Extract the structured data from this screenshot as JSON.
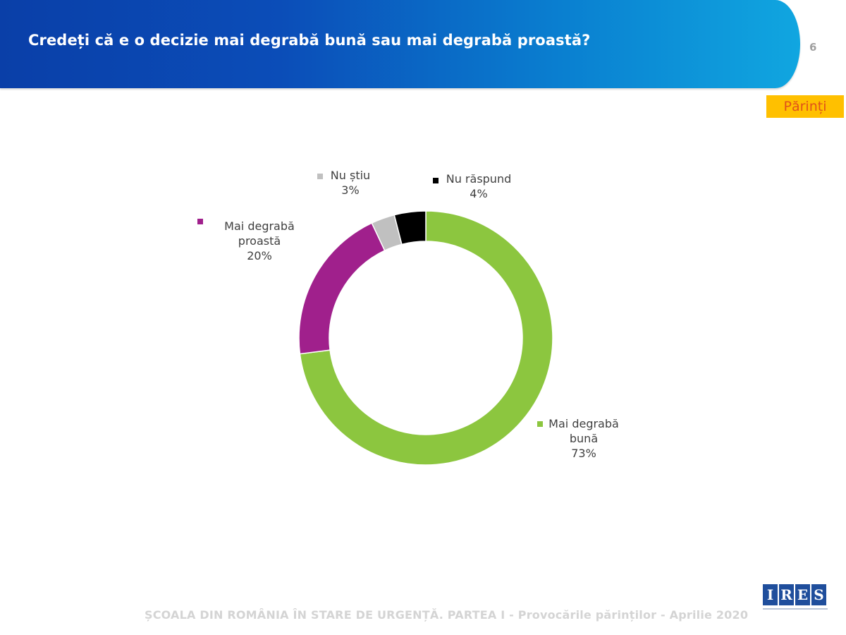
{
  "header": {
    "title": "Credeți că e o decizie mai degrabă bună sau mai degrabă proastă?",
    "page_number": "6",
    "badge": "Părinți"
  },
  "footer": {
    "text": "ȘCOALA DIN ROMÂNIA ÎN STARE DE URGENȚĂ. PARTEA I - Provocările părinților - Aprilie 2020",
    "logo_letters": [
      "I",
      "R",
      "E",
      "S"
    ]
  },
  "chart_data": {
    "type": "pie",
    "subtype": "donut",
    "title": "Credeți că e o decizie mai degrabă bună sau mai degrabă proastă?",
    "start": "top",
    "direction": "clockwise",
    "slices": [
      {
        "label": "Mai degrabă bună",
        "label_lines": [
          "Mai degrabă",
          "bună"
        ],
        "value": 73,
        "value_label": "73%",
        "color": "#8cc63f"
      },
      {
        "label": "Mai degrabă proastă",
        "label_lines": [
          "Mai degrabă",
          "proastă"
        ],
        "value": 20,
        "value_label": "20%",
        "color": "#a0208c"
      },
      {
        "label": "Nu știu",
        "label_lines": [
          "Nu știu"
        ],
        "value": 3,
        "value_label": "3%",
        "color": "#c0c0c0"
      },
      {
        "label": "Nu răspund",
        "label_lines": [
          "Nu răspund"
        ],
        "value": 4,
        "value_label": "4%",
        "color": "#000000"
      }
    ]
  }
}
